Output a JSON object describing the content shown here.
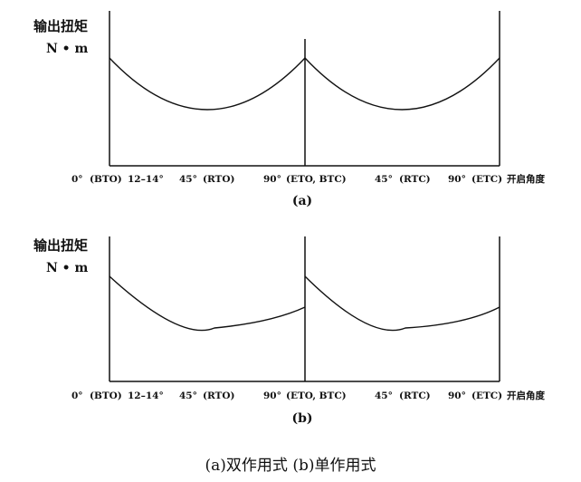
{
  "panels": [
    {
      "subtitle": "(a)",
      "ylabel": "输出扭矩",
      "yunit": "N • m",
      "xlabel": "开启角度",
      "ticks": [
        "0°",
        "(BTO)",
        "12–14°",
        "45°",
        "(RTO)",
        "90°",
        "(ETO, BTC)",
        "45°",
        "(RTC)",
        "90°",
        "(ETC)"
      ]
    },
    {
      "subtitle": "(b)",
      "ylabel": "输出扭矩",
      "yunit": "N • m",
      "xlabel": "开启角度",
      "ticks": [
        "0°",
        "(BTO)",
        "12–14°",
        "45°",
        "(RTO)",
        "90°",
        "(ETO, BTC)",
        "45°",
        "(RTC)",
        "90°",
        "(ETC)"
      ]
    }
  ],
  "caption": "(a)双作用式 (b)单作用式"
}
